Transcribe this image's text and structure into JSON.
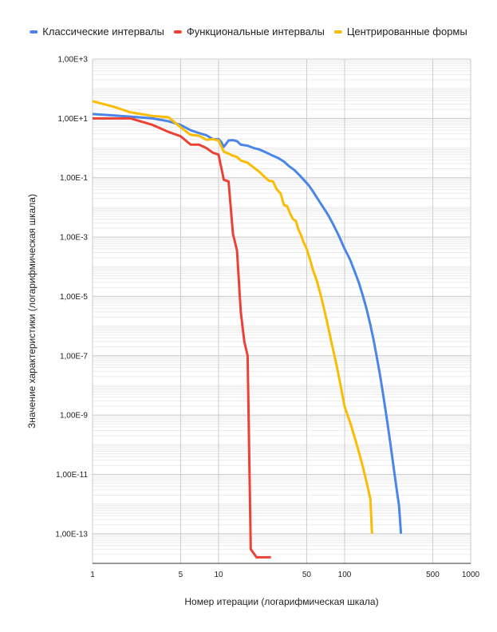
{
  "chart_data": {
    "type": "line",
    "title": "",
    "xlabel": "Номер итерации (логарифмическая шкала)",
    "ylabel": "Значение характеристики (логарифмическая шкала)",
    "x_scale": "log",
    "y_scale": "log",
    "xlim": [
      1,
      1000
    ],
    "ylim": [
      1e-14,
      1000
    ],
    "grid": true,
    "legend_position": "top",
    "x_ticks": [
      {
        "value": 1,
        "label": "1"
      },
      {
        "value": 5,
        "label": "5"
      },
      {
        "value": 10,
        "label": "10"
      },
      {
        "value": 50,
        "label": "50"
      },
      {
        "value": 100,
        "label": "100"
      },
      {
        "value": 500,
        "label": "500"
      },
      {
        "value": 1000,
        "label": "1000"
      }
    ],
    "y_ticks": [
      {
        "value": 1000,
        "label": "1,00E+3"
      },
      {
        "value": 10,
        "label": "1,00E+1"
      },
      {
        "value": 0.1,
        "label": "1,00E-1"
      },
      {
        "value": 0.001,
        "label": "1,00E-3"
      },
      {
        "value": 1e-05,
        "label": "1,00E-5"
      },
      {
        "value": 1e-07,
        "label": "1,00E-7"
      },
      {
        "value": 1e-09,
        "label": "1,00E-9"
      },
      {
        "value": 1e-11,
        "label": "1,00E-11"
      },
      {
        "value": 1e-13,
        "label": "1,00E-13"
      }
    ],
    "series": [
      {
        "name": "Классические интервалы",
        "color": "#4a86e8",
        "points": [
          [
            1,
            14
          ],
          [
            1.5,
            12.5
          ],
          [
            2,
            11.5
          ],
          [
            3,
            10
          ],
          [
            4,
            8
          ],
          [
            5,
            6
          ],
          [
            6,
            4
          ],
          [
            7,
            3.2
          ],
          [
            8,
            2.7
          ],
          [
            9,
            2.0
          ],
          [
            10,
            2.0
          ],
          [
            10.5,
            1.6
          ],
          [
            11,
            1.1
          ],
          [
            12,
            1.8
          ],
          [
            13,
            1.85
          ],
          [
            14,
            1.7
          ],
          [
            15,
            1.3
          ],
          [
            17,
            1.2
          ],
          [
            19,
            1.0
          ],
          [
            21,
            0.9
          ],
          [
            24,
            0.7
          ],
          [
            27,
            0.55
          ],
          [
            30,
            0.45
          ],
          [
            33,
            0.35
          ],
          [
            36,
            0.25
          ],
          [
            40,
            0.18
          ],
          [
            44,
            0.12
          ],
          [
            48,
            0.08
          ],
          [
            52,
            0.055
          ],
          [
            56,
            0.035
          ],
          [
            60,
            0.022
          ],
          [
            65,
            0.013
          ],
          [
            70,
            0.008
          ],
          [
            75,
            0.005
          ],
          [
            80,
            0.003
          ],
          [
            85,
            0.0018
          ],
          [
            90,
            0.0011
          ],
          [
            95,
            0.00065
          ],
          [
            100,
            0.0004
          ],
          [
            110,
            0.00018
          ],
          [
            120,
            7e-05
          ],
          [
            130,
            2.8e-05
          ],
          [
            140,
            1e-05
          ],
          [
            150,
            3.5e-06
          ],
          [
            160,
            1.1e-06
          ],
          [
            170,
            3.3e-07
          ],
          [
            180,
            9e-08
          ],
          [
            190,
            2.5e-08
          ],
          [
            200,
            6.5e-09
          ],
          [
            210,
            1.7e-09
          ],
          [
            220,
            4.5e-10
          ],
          [
            230,
            1.2e-10
          ],
          [
            240,
            3.2e-11
          ],
          [
            250,
            9e-12
          ],
          [
            260,
            2.7e-12
          ],
          [
            270,
            9e-13
          ],
          [
            280,
            1e-13
          ]
        ]
      },
      {
        "name": "Функциональные интервалы",
        "color": "#ea4335",
        "points": [
          [
            1,
            10
          ],
          [
            1.5,
            10
          ],
          [
            2,
            10
          ],
          [
            3,
            6
          ],
          [
            4,
            3.5
          ],
          [
            5,
            2.5
          ],
          [
            6,
            1.3
          ],
          [
            7,
            1.3
          ],
          [
            8,
            1.0
          ],
          [
            9,
            0.7
          ],
          [
            10,
            0.6
          ],
          [
            11,
            0.085
          ],
          [
            12,
            0.075
          ],
          [
            13,
            0.0013
          ],
          [
            14,
            0.00035
          ],
          [
            15,
            3e-06
          ],
          [
            16,
            3e-07
          ],
          [
            17,
            1e-07
          ],
          [
            18,
            3e-14
          ],
          [
            20,
            1.6e-14
          ],
          [
            26,
            1.6e-14
          ]
        ]
      },
      {
        "name": "Центрированные формы",
        "color": "#fbbc04",
        "points": [
          [
            1,
            38
          ],
          [
            1.5,
            24
          ],
          [
            2,
            16
          ],
          [
            3,
            12
          ],
          [
            4,
            11
          ],
          [
            5,
            5
          ],
          [
            6,
            2.8
          ],
          [
            7,
            2.6
          ],
          [
            8,
            1.9
          ],
          [
            9,
            2.0
          ],
          [
            10,
            1.8
          ],
          [
            11,
            0.75
          ],
          [
            12,
            0.65
          ],
          [
            13,
            0.55
          ],
          [
            14,
            0.5
          ],
          [
            15,
            0.38
          ],
          [
            17,
            0.32
          ],
          [
            19,
            0.22
          ],
          [
            21,
            0.16
          ],
          [
            23,
            0.11
          ],
          [
            25,
            0.08
          ],
          [
            27,
            0.075
          ],
          [
            29,
            0.04
          ],
          [
            31,
            0.03
          ],
          [
            33,
            0.012
          ],
          [
            35,
            0.011
          ],
          [
            37,
            0.006
          ],
          [
            39,
            0.004
          ],
          [
            41,
            0.0035
          ],
          [
            43,
            0.0018
          ],
          [
            45,
            0.0012
          ],
          [
            47,
            0.0007
          ],
          [
            50,
            0.0004
          ],
          [
            53,
            0.00018
          ],
          [
            56,
            8e-05
          ],
          [
            60,
            3.5e-05
          ],
          [
            64,
            1.3e-05
          ],
          [
            68,
            4.5e-06
          ],
          [
            72,
            1.6e-06
          ],
          [
            76,
            5.5e-07
          ],
          [
            80,
            2e-07
          ],
          [
            85,
            6.5e-08
          ],
          [
            90,
            2e-08
          ],
          [
            95,
            6e-09
          ],
          [
            100,
            1.9e-09
          ],
          [
            110,
            6e-10
          ],
          [
            120,
            1.8e-10
          ],
          [
            130,
            5.5e-11
          ],
          [
            140,
            1.7e-11
          ],
          [
            150,
            5e-12
          ],
          [
            160,
            1.5e-12
          ],
          [
            165,
            1e-13
          ]
        ]
      }
    ]
  }
}
